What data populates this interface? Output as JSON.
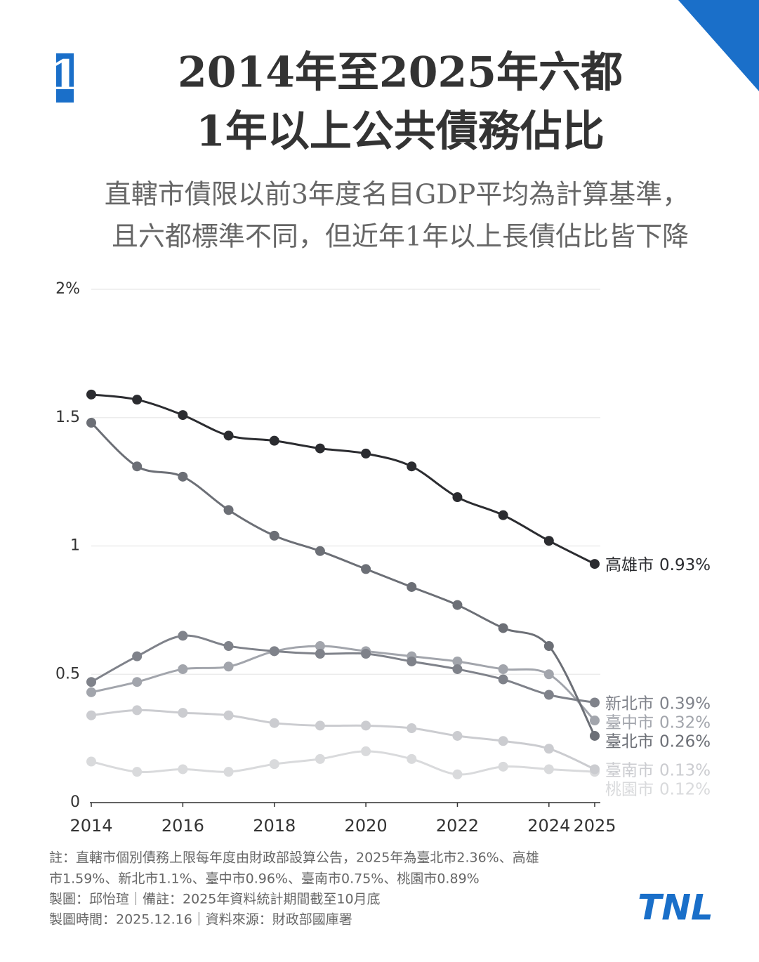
{
  "chart_data": {
    "type": "line",
    "badge": "1",
    "title": [
      "2014年至2025年六都",
      "1年以上公共債務佔比"
    ],
    "subtitle": [
      "直轄市債限以前3年度名目GDP平均為計算基準，",
      "且六都標準不同，但近年1年以上長債佔比皆下降"
    ],
    "x": [
      2014,
      2015,
      2016,
      2017,
      2018,
      2019,
      2020,
      2021,
      2022,
      2023,
      2024,
      2025
    ],
    "xlim": [
      2014,
      2025
    ],
    "xticks": [
      2014,
      2016,
      2018,
      2020,
      2022,
      2024,
      2025
    ],
    "ylim": [
      0,
      2
    ],
    "yticks": [
      0,
      0.5,
      1,
      1.5,
      {
        "value": 2,
        "label": "2%"
      }
    ],
    "grid": true,
    "series": [
      {
        "name": "高雄市",
        "color": "#2b2c30",
        "values": [
          1.59,
          1.57,
          1.51,
          1.43,
          1.41,
          1.38,
          1.36,
          1.31,
          1.19,
          1.12,
          1.02,
          0.93
        ],
        "value_labels": [
          null,
          null,
          null,
          null,
          null,
          null,
          null,
          null,
          null,
          null,
          null,
          "0.93%"
        ]
      },
      {
        "name": "臺北市",
        "color": "#6c6f76",
        "values": [
          1.48,
          1.31,
          1.27,
          1.14,
          1.04,
          0.98,
          0.91,
          0.84,
          0.77,
          0.68,
          0.61,
          0.26
        ],
        "value_labels": [
          null,
          null,
          null,
          null,
          null,
          null,
          null,
          null,
          null,
          null,
          null,
          "0.26%"
        ]
      },
      {
        "name": "新北市",
        "color": "#7f828a",
        "values": [
          0.47,
          0.57,
          0.65,
          0.61,
          0.59,
          0.58,
          0.58,
          0.55,
          0.52,
          0.48,
          0.42,
          0.39
        ],
        "value_labels": [
          null,
          null,
          null,
          null,
          null,
          null,
          null,
          null,
          null,
          null,
          null,
          "0.39%"
        ]
      },
      {
        "name": "臺中市",
        "color": "#a2a5ac",
        "values": [
          0.43,
          0.47,
          0.52,
          0.53,
          0.59,
          0.61,
          0.59,
          0.57,
          0.55,
          0.52,
          0.5,
          0.32
        ],
        "value_labels": [
          null,
          null,
          null,
          null,
          null,
          null,
          null,
          null,
          null,
          null,
          null,
          "0.32%"
        ]
      },
      {
        "name": "臺南市",
        "color": "#cbccd0",
        "values": [
          0.34,
          0.36,
          0.35,
          0.34,
          0.31,
          0.3,
          0.3,
          0.29,
          0.26,
          0.24,
          0.21,
          0.13
        ],
        "value_labels": [
          null,
          null,
          null,
          null,
          null,
          null,
          null,
          null,
          null,
          null,
          null,
          "0.13%"
        ]
      },
      {
        "name": "桃園市",
        "color": "#d9dadc",
        "values": [
          0.16,
          0.12,
          0.13,
          0.12,
          0.15,
          0.17,
          0.2,
          0.17,
          0.11,
          0.14,
          0.13,
          0.12
        ],
        "value_labels": [
          null,
          null,
          null,
          null,
          null,
          null,
          null,
          null,
          null,
          null,
          null,
          "0.12%"
        ]
      }
    ],
    "notes": [
      "註：直轄市個別債務上限每年度由財政部設算公告，2025年為臺北市2.36%、高雄",
      "市1.59%、新北市1.1%、臺中市0.96%、臺南市0.75%、桃園市0.89%",
      "製圖：邱怡瑄｜備註：2025年資料統計期間截至10月底",
      "製圖時間：2025.12.16｜資料來源：財政部國庫署"
    ],
    "logo": "TNL"
  }
}
